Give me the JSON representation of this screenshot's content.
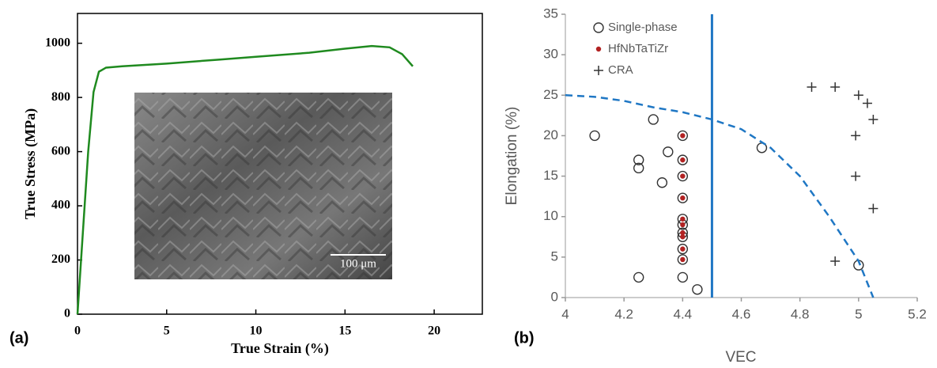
{
  "chart_data": [
    {
      "type": "line",
      "panel_label": "(a)",
      "x_label": "True Strain (%)",
      "y_label": "True Stress (MPa)",
      "xlim": [
        0,
        22.7
      ],
      "xticks": [
        0,
        5,
        10,
        15,
        20
      ],
      "ylim": [
        0,
        1110
      ],
      "yticks": [
        0,
        200,
        400,
        600,
        800,
        1000
      ],
      "inset_scale_label": "100 μm",
      "series": [
        {
          "name": null,
          "color": "#1f8a1f",
          "x": [
            0,
            0.3,
            0.6,
            0.9,
            1.2,
            1.6,
            2.5,
            5,
            8,
            10,
            13,
            15,
            16.5,
            17.5,
            18.2,
            18.8
          ],
          "values": [
            0,
            300,
            600,
            820,
            895,
            910,
            915,
            925,
            940,
            950,
            965,
            980,
            990,
            985,
            960,
            915
          ]
        }
      ]
    },
    {
      "type": "scatter",
      "panel_label": "(b)",
      "x_label": "VEC",
      "y_label": "Elongation  (%)",
      "xlim": [
        4,
        5.2
      ],
      "xticks": [
        4,
        4.2,
        4.4,
        4.6,
        4.8,
        5,
        5.2
      ],
      "ylim": [
        0,
        35
      ],
      "yticks": [
        0,
        5,
        10,
        15,
        20,
        25,
        30,
        35
      ],
      "vline": {
        "x": 4.5,
        "color": "#1f77c4"
      },
      "series": [
        {
          "name": "Single-phase",
          "color": "#333333",
          "marker": "circle-open",
          "x": [
            4.1,
            4.25,
            4.25,
            4.3,
            4.33,
            4.35,
            4.25,
            4.4,
            4.45,
            4.67,
            5,
            4.4,
            4.4,
            4.4,
            4.4,
            4.4,
            4.4,
            4.4,
            4.4,
            4.4,
            4.4
          ],
          "values": [
            20,
            17,
            16,
            22,
            14.2,
            18,
            2.5,
            2.5,
            1,
            18.5,
            4,
            20,
            17,
            15,
            12.3,
            9.7,
            9,
            8,
            7.5,
            6,
            4.7
          ]
        },
        {
          "name": "HfNbTaTiZr",
          "color": "#b22222",
          "marker": "dot",
          "x": [
            4.4,
            4.4,
            4.4,
            4.4,
            4.4,
            4.4,
            4.4,
            4.4,
            4.4,
            4.4
          ],
          "values": [
            20,
            17,
            15,
            12.3,
            9.7,
            9,
            8,
            7.5,
            6,
            4.7
          ]
        },
        {
          "name": "CRA",
          "color": "#333333",
          "marker": "plus",
          "x": [
            4.84,
            4.92,
            5,
            5.03,
            5.05,
            4.99,
            4.99,
            5.05,
            4.92
          ],
          "values": [
            26,
            26,
            25,
            24,
            22,
            20,
            15,
            11,
            4.5
          ]
        },
        {
          "name": null,
          "color": "#1f77c4",
          "marker": "dashed-line",
          "x": [
            4,
            4.1,
            4.2,
            4.3,
            4.4,
            4.5,
            4.6,
            4.7,
            4.8,
            4.9,
            5,
            5.05
          ],
          "values": [
            25,
            24.8,
            24.3,
            23.5,
            22.9,
            22,
            20.8,
            18.5,
            15,
            10,
            4.5,
            0
          ]
        }
      ]
    }
  ]
}
